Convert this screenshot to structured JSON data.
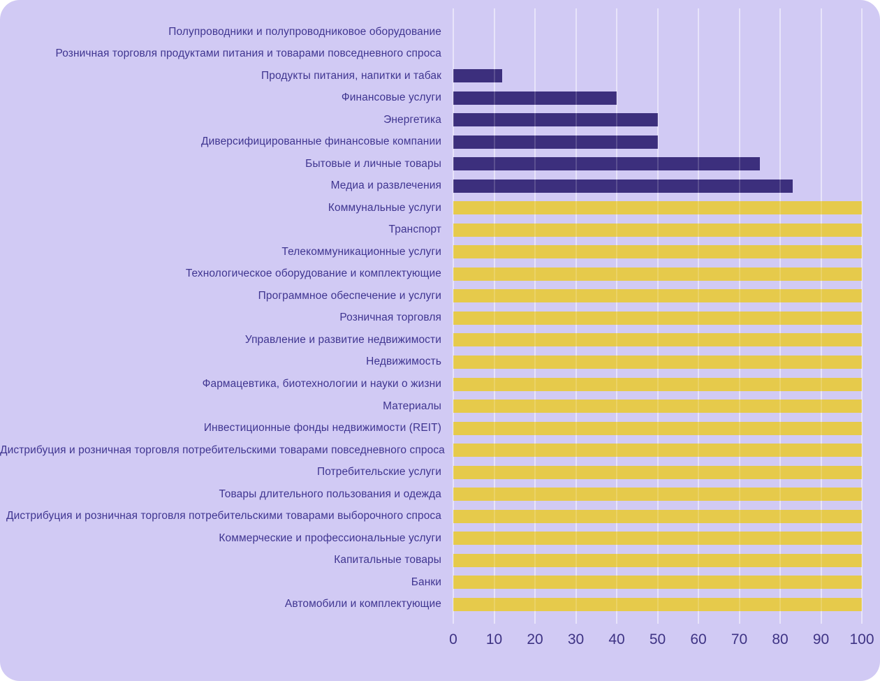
{
  "chart_data": {
    "type": "bar",
    "orientation": "horizontal",
    "title": "",
    "xlabel": "",
    "ylabel": "",
    "xlim": [
      0,
      100
    ],
    "grid": true,
    "legend": false,
    "x_ticks": [
      0,
      10,
      20,
      30,
      40,
      50,
      60,
      70,
      80,
      90,
      100
    ],
    "categories": [
      "Полупроводники и полупроводниковое оборудование",
      "Розничная торговля продуктами питания и товарами повседневного спроса",
      "Продукты питания, напитки и табак",
      "Финансовые услуги",
      "Энергетика",
      "Диверсифицированные финансовые компании",
      "Бытовые и личные товары",
      "Медиа и развлечения",
      "Коммунальные услуги",
      "Транспорт",
      "Телекоммуникационные услуги",
      "Технологическое оборудование и комплектующие",
      "Программное обеспечение и услуги",
      "Розничная торговля",
      "Управление и развитие недвижимости",
      "Недвижимость",
      "Фармацевтика, биотехнологии и науки о жизни",
      "Материалы",
      "Инвестиционные фонды недвижимости (REIT)",
      "Дистрибуция и розничная торговля потребительскими товарами повседневного спроса",
      "Потребительские услуги",
      "Товары длительного пользования и одежда",
      "Дистрибуция и розничная торговля потребительскими товарами выборочного спроса",
      "Коммерческие и профессиональные услуги",
      "Капитальные товары",
      "Банки",
      "Автомобили и комплектующие"
    ],
    "values": [
      0,
      0,
      12,
      40,
      50,
      50,
      75,
      83,
      100,
      100,
      100,
      100,
      100,
      100,
      100,
      100,
      100,
      100,
      100,
      100,
      100,
      100,
      100,
      100,
      100,
      100,
      100
    ],
    "bar_colors": [
      "#3c2f7d",
      "#3c2f7d",
      "#3c2f7d",
      "#3c2f7d",
      "#3c2f7d",
      "#3c2f7d",
      "#3c2f7d",
      "#3c2f7d",
      "#e6ca4b",
      "#e6ca4b",
      "#e6ca4b",
      "#e6ca4b",
      "#e6ca4b",
      "#e6ca4b",
      "#e6ca4b",
      "#e6ca4b",
      "#e6ca4b",
      "#e6ca4b",
      "#e6ca4b",
      "#e6ca4b",
      "#e6ca4b",
      "#e6ca4b",
      "#e6ca4b",
      "#e6ca4b",
      "#e6ca4b",
      "#e6ca4b",
      "#e6ca4b"
    ],
    "colors": {
      "partial_bar": "#3c2f7d",
      "full_bar": "#e6ca4b",
      "background": "#d1caf4",
      "gridline": "#e4dff9",
      "label_text": "#3f3590",
      "tick_text": "#3e3384"
    }
  }
}
